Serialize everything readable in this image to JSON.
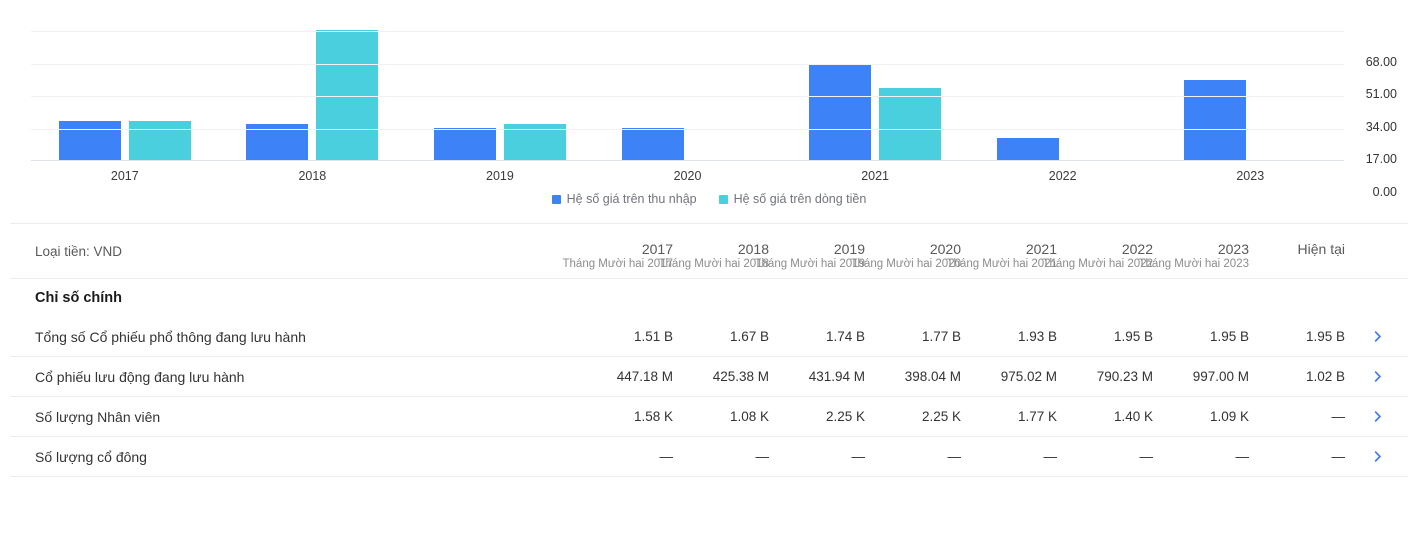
{
  "chart": {
    "y_ticks": [
      "68.00",
      "51.00",
      "34.00",
      "17.00",
      "0.00"
    ],
    "legend": [
      {
        "label": "Hệ số giá trên thu nhập",
        "color": "#3E82F7"
      },
      {
        "label": "Hệ số giá trên dòng tiền",
        "color": "#4ACFDE"
      }
    ]
  },
  "chart_data": {
    "type": "bar",
    "categories": [
      "2017",
      "2018",
      "2019",
      "2020",
      "2021",
      "2022",
      "2023"
    ],
    "series": [
      {
        "name": "Hệ số giá trên thu nhập",
        "color": "#3E82F7",
        "values": [
          20.5,
          18.9,
          16.9,
          16.9,
          50.4,
          11.7,
          42.0
        ]
      },
      {
        "name": "Hệ số giá trên dòng tiền",
        "color": "#4ACFDE",
        "values": [
          20.3,
          68.0,
          18.7,
          null,
          37.6,
          null,
          null
        ]
      }
    ],
    "title": "",
    "xlabel": "",
    "ylabel": "",
    "ylim": [
      0,
      68
    ],
    "y_tick_step": 17,
    "grid": true,
    "legend_position": "bottom",
    "axis_side": "right"
  },
  "table": {
    "currency_label": "Loại tiền: VND",
    "columns": [
      {
        "label": "2017",
        "subtitle": "Tháng Mười hai 2017"
      },
      {
        "label": "2018",
        "subtitle": "Tháng Mười hai 2018"
      },
      {
        "label": "2019",
        "subtitle": "Tháng Mười hai 2019"
      },
      {
        "label": "2020",
        "subtitle": "Tháng Mười hai 2020"
      },
      {
        "label": "2021",
        "subtitle": "Tháng Mười hai 2021"
      },
      {
        "label": "2022",
        "subtitle": "Tháng Mười hai 2022"
      },
      {
        "label": "2023",
        "subtitle": "Tháng Mười hai 2023"
      },
      {
        "label": "Hiện tại",
        "subtitle": ""
      }
    ],
    "section_title": "Chỉ số chính",
    "rows": [
      {
        "label": "Tổng số Cổ phiếu phổ thông đang lưu hành",
        "values": [
          "1.51 B",
          "1.67 B",
          "1.74 B",
          "1.77 B",
          "1.93 B",
          "1.95 B",
          "1.95 B",
          "1.95 B"
        ]
      },
      {
        "label": "Cổ phiếu lưu động đang lưu hành",
        "values": [
          "447.18 M",
          "425.38 M",
          "431.94 M",
          "398.04 M",
          "975.02 M",
          "790.23 M",
          "997.00 M",
          "1.02 B"
        ]
      },
      {
        "label": "Số lượng Nhân viên",
        "values": [
          "1.58 K",
          "1.08 K",
          "2.25 K",
          "2.25 K",
          "1.77 K",
          "1.40 K",
          "1.09 K",
          "—"
        ]
      },
      {
        "label": "Số lượng cổ đông",
        "values": [
          "—",
          "—",
          "—",
          "—",
          "—",
          "—",
          "—",
          "—"
        ]
      }
    ],
    "chevron_color": "#3D7BF5"
  }
}
